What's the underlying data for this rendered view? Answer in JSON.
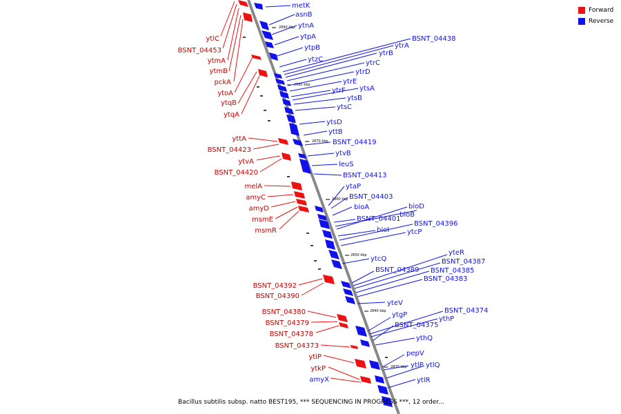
{
  "legend": {
    "forward_label": "Forward",
    "reverse_label": "Reverse",
    "forward_color": "#ee1111",
    "reverse_color": "#1111ee"
  },
  "caption": "Bacillus subtilis subsp. natto BEST195, *** SEQUENCING IN PROGRESS ***, 12 order...",
  "ticks": [
    "2890 kbp",
    "2880 kbp",
    "2870 kbp",
    "2860 kbp",
    "2850 kbp",
    "2840 kbp",
    "2830 kbp"
  ],
  "reverse_genes": [
    "metK",
    "asnB",
    "ytnA",
    "ytpA",
    "ytpB",
    "ytzC",
    "BSNT_04438",
    "ytrA",
    "ytrB",
    "ytrC",
    "ytrD",
    "ytrE",
    "ytrF",
    "ytsA",
    "ytsB",
    "ytsC",
    "ytsD",
    "yttB",
    "BSNT_04419",
    "ytvB",
    "leuS",
    "BSNT_04413",
    "ytaP",
    "BSNT_04403",
    "bioA",
    "BSNT_04401",
    "bioB",
    "bioD",
    "bioI",
    "BSNT_04396",
    "ytcP",
    "ytcQ",
    "BSNT_04389",
    "yteR",
    "BSNT_04387",
    "BSNT_04385",
    "BSNT_04383",
    "yteV",
    "ytgP",
    "BSNT_04374",
    "ythP",
    "BSNT_04375",
    "ythQ",
    "pepV",
    "ytlP",
    "ytlQ",
    "ytlR"
  ],
  "forward_genes": [
    "ytlC",
    "BSNT_04453",
    "ytmA",
    "ytmB",
    "pckA",
    "ytoA",
    "ytqB",
    "ytqA",
    "yttA",
    "BSNT_04423",
    "ytvA",
    "BSNT_04420",
    "melA",
    "amyC",
    "amyD",
    "msmE",
    "msmR",
    "BSNT_04392",
    "BSNT_04390",
    "BSNT_04380",
    "BSNT_04379",
    "BSNT_04378",
    "BSNT_04373",
    "ytiP",
    "ytkP",
    "amyX"
  ]
}
